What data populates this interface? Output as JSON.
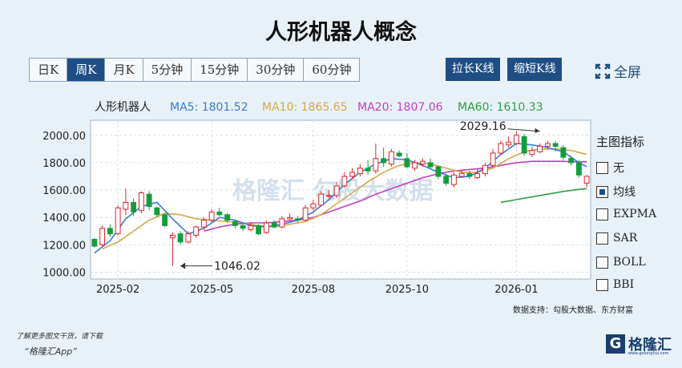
{
  "title": "人形机器人概念",
  "periods": [
    "日K",
    "周K",
    "月K",
    "5分钟",
    "15分钟",
    "30分钟",
    "60分钟"
  ],
  "active_period": "周K",
  "zoom_in_label": "拉长K线",
  "zoom_out_label": "缩短K线",
  "fullscreen_label": "全屏",
  "indicator_panel": {
    "title": "主图指标",
    "items": [
      {
        "label": "无",
        "checked": false
      },
      {
        "label": "均线",
        "checked": true
      },
      {
        "label": "EXPMA",
        "checked": false
      },
      {
        "label": "SAR",
        "checked": false
      },
      {
        "label": "BOLL",
        "checked": false
      },
      {
        "label": "BBI",
        "checked": false
      }
    ]
  },
  "source": "数据支持：勾股大数据、东方财富",
  "footer": {
    "line1": "了解更多图文干货，请下载",
    "line2": "“格隆汇App”"
  },
  "logo": {
    "glyph": "G",
    "text": "格隆汇",
    "url": "www.gelonghui.com"
  },
  "watermark": "格隆汇  勾股大数据",
  "colors": {
    "up": "#e0242b",
    "down": "#149c3b",
    "ma5": "#3a7bd5",
    "ma10": "#d4a94a",
    "ma20": "#c43fc4",
    "ma60": "#2f9e44",
    "accent": "#1f4e85"
  },
  "chart_data": {
    "type": "candlestick",
    "name": "人形机器人",
    "ma_labels": [
      {
        "name": "MA5",
        "value": "1801.52"
      },
      {
        "name": "MA10",
        "value": "1865.65"
      },
      {
        "name": "MA20",
        "value": "1807.06"
      },
      {
        "name": "MA60",
        "value": "1610.33"
      }
    ],
    "y_ticks": [
      "2000.00",
      "1800.00",
      "1600.00",
      "1400.00",
      "1200.00",
      "1000.00"
    ],
    "y_tick_values": [
      2000,
      1800,
      1600,
      1400,
      1200,
      1000
    ],
    "ylim": [
      950,
      2110
    ],
    "x_ticks": [
      {
        "label": "2025-02",
        "index": 3
      },
      {
        "label": "2025-05",
        "index": 15
      },
      {
        "label": "2025-08",
        "index": 28
      },
      {
        "label": "2025-10",
        "index": 40
      },
      {
        "label": "2026-01",
        "index": 54
      }
    ],
    "annotations": [
      {
        "text": "2029.16",
        "index": 57,
        "value": 2029.16
      },
      {
        "text": "1046.02",
        "index": 11,
        "value": 1046.02
      }
    ],
    "candles": [
      [
        1240,
        1190,
        1250,
        1180
      ],
      [
        1200,
        1320,
        1340,
        1190
      ],
      [
        1320,
        1280,
        1350,
        1260
      ],
      [
        1280,
        1470,
        1490,
        1270
      ],
      [
        1460,
        1510,
        1610,
        1420
      ],
      [
        1510,
        1440,
        1540,
        1410
      ],
      [
        1450,
        1580,
        1590,
        1430
      ],
      [
        1570,
        1480,
        1590,
        1450
      ],
      [
        1470,
        1420,
        1480,
        1400
      ],
      [
        1420,
        1340,
        1430,
        1330
      ],
      [
        1250,
        1270,
        1290,
        1046.02
      ],
      [
        1280,
        1220,
        1300,
        1200
      ],
      [
        1220,
        1280,
        1300,
        1210
      ],
      [
        1270,
        1330,
        1340,
        1250
      ],
      [
        1330,
        1380,
        1400,
        1310
      ],
      [
        1380,
        1440,
        1460,
        1360
      ],
      [
        1440,
        1420,
        1470,
        1410
      ],
      [
        1420,
        1380,
        1430,
        1360
      ],
      [
        1370,
        1340,
        1380,
        1320
      ],
      [
        1340,
        1320,
        1360,
        1300
      ],
      [
        1310,
        1340,
        1360,
        1300
      ],
      [
        1340,
        1280,
        1350,
        1270
      ],
      [
        1290,
        1360,
        1380,
        1280
      ],
      [
        1360,
        1330,
        1380,
        1320
      ],
      [
        1330,
        1390,
        1410,
        1320
      ],
      [
        1390,
        1400,
        1430,
        1380
      ],
      [
        1390,
        1380,
        1410,
        1360
      ],
      [
        1380,
        1470,
        1490,
        1370
      ],
      [
        1470,
        1500,
        1530,
        1450
      ],
      [
        1490,
        1570,
        1590,
        1480
      ],
      [
        1560,
        1560,
        1600,
        1540
      ],
      [
        1560,
        1630,
        1660,
        1540
      ],
      [
        1630,
        1700,
        1730,
        1620
      ],
      [
        1700,
        1730,
        1760,
        1680
      ],
      [
        1720,
        1760,
        1790,
        1700
      ],
      [
        1760,
        1740,
        1820,
        1710
      ],
      [
        1740,
        1830,
        1940,
        1720
      ],
      [
        1830,
        1800,
        1910,
        1770
      ],
      [
        1790,
        1880,
        1900,
        1770
      ],
      [
        1870,
        1850,
        1890,
        1840
      ],
      [
        1830,
        1770,
        1870,
        1760
      ],
      [
        1760,
        1800,
        1820,
        1740
      ],
      [
        1790,
        1810,
        1830,
        1770
      ],
      [
        1800,
        1770,
        1830,
        1760
      ],
      [
        1770,
        1700,
        1780,
        1680
      ],
      [
        1700,
        1650,
        1720,
        1630
      ],
      [
        1640,
        1710,
        1730,
        1620
      ],
      [
        1700,
        1720,
        1750,
        1690
      ],
      [
        1720,
        1700,
        1740,
        1680
      ],
      [
        1690,
        1720,
        1760,
        1680
      ],
      [
        1720,
        1780,
        1800,
        1700
      ],
      [
        1780,
        1870,
        1900,
        1770
      ],
      [
        1870,
        1940,
        1960,
        1860
      ],
      [
        1930,
        1950,
        1990,
        1910
      ],
      [
        1940,
        2000,
        2029.16,
        1930
      ],
      [
        1990,
        1870,
        2010,
        1850
      ],
      [
        1860,
        1890,
        1920,
        1840
      ],
      [
        1880,
        1920,
        1940,
        1870
      ],
      [
        1920,
        1940,
        1960,
        1900
      ],
      [
        1940,
        1920,
        1960,
        1880
      ],
      [
        1910,
        1840,
        1930,
        1820
      ],
      [
        1830,
        1800,
        1850,
        1780
      ],
      [
        1800,
        1710,
        1820,
        1690
      ],
      [
        1650,
        1700,
        1710,
        1620
      ]
    ],
    "ma5": [
      [
        0,
        1140
      ],
      [
        2,
        1230
      ],
      [
        4,
        1390
      ],
      [
        6,
        1480
      ],
      [
        8,
        1510
      ],
      [
        10,
        1390
      ],
      [
        12,
        1280
      ],
      [
        14,
        1320
      ],
      [
        16,
        1400
      ],
      [
        18,
        1380
      ],
      [
        20,
        1340
      ],
      [
        22,
        1330
      ],
      [
        24,
        1350
      ],
      [
        26,
        1380
      ],
      [
        28,
        1440
      ],
      [
        30,
        1530
      ],
      [
        32,
        1640
      ],
      [
        34,
        1730
      ],
      [
        36,
        1790
      ],
      [
        38,
        1830
      ],
      [
        40,
        1820
      ],
      [
        42,
        1780
      ],
      [
        44,
        1730
      ],
      [
        46,
        1690
      ],
      [
        48,
        1700
      ],
      [
        50,
        1760
      ],
      [
        52,
        1860
      ],
      [
        54,
        1940
      ],
      [
        56,
        1930
      ],
      [
        58,
        1910
      ],
      [
        60,
        1880
      ],
      [
        62,
        1800
      ],
      [
        63,
        1770
      ]
    ],
    "ma10": [
      [
        1,
        1170
      ],
      [
        3,
        1220
      ],
      [
        5,
        1300
      ],
      [
        7,
        1380
      ],
      [
        9,
        1430
      ],
      [
        11,
        1420
      ],
      [
        13,
        1390
      ],
      [
        15,
        1380
      ],
      [
        17,
        1370
      ],
      [
        19,
        1360
      ],
      [
        21,
        1340
      ],
      [
        23,
        1330
      ],
      [
        25,
        1350
      ],
      [
        27,
        1370
      ],
      [
        29,
        1420
      ],
      [
        31,
        1500
      ],
      [
        33,
        1580
      ],
      [
        35,
        1660
      ],
      [
        37,
        1730
      ],
      [
        39,
        1780
      ],
      [
        41,
        1800
      ],
      [
        43,
        1790
      ],
      [
        45,
        1760
      ],
      [
        47,
        1730
      ],
      [
        49,
        1730
      ],
      [
        51,
        1760
      ],
      [
        53,
        1830
      ],
      [
        55,
        1880
      ],
      [
        57,
        1900
      ],
      [
        59,
        1900
      ],
      [
        61,
        1890
      ],
      [
        63,
        1860
      ]
    ],
    "ma20": [
      [
        14,
        1300
      ],
      [
        16,
        1330
      ],
      [
        18,
        1350
      ],
      [
        20,
        1360
      ],
      [
        22,
        1360
      ],
      [
        24,
        1370
      ],
      [
        26,
        1380
      ],
      [
        28,
        1400
      ],
      [
        30,
        1440
      ],
      [
        32,
        1480
      ],
      [
        34,
        1520
      ],
      [
        36,
        1570
      ],
      [
        38,
        1610
      ],
      [
        40,
        1650
      ],
      [
        42,
        1690
      ],
      [
        44,
        1720
      ],
      [
        46,
        1740
      ],
      [
        48,
        1750
      ],
      [
        50,
        1760
      ],
      [
        52,
        1780
      ],
      [
        54,
        1800
      ],
      [
        56,
        1810
      ],
      [
        58,
        1810
      ],
      [
        60,
        1810
      ],
      [
        62,
        1805
      ],
      [
        63,
        1807
      ]
    ],
    "ma60": [
      [
        52,
        1510
      ],
      [
        54,
        1530
      ],
      [
        56,
        1550
      ],
      [
        58,
        1570
      ],
      [
        60,
        1590
      ],
      [
        62,
        1605
      ],
      [
        63,
        1610
      ]
    ]
  }
}
